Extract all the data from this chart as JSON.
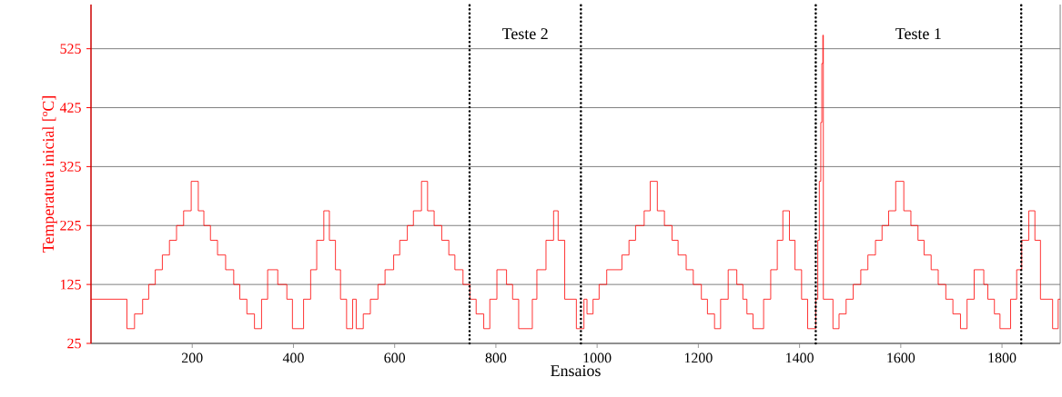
{
  "chart_data": {
    "type": "step",
    "xlabel": "Ensaios",
    "ylabel": "Temperatura inicial [ºC]",
    "xlim": [
      0,
      1915
    ],
    "ylim": [
      25,
      600
    ],
    "xticks": [
      200,
      400,
      600,
      800,
      1000,
      1200,
      1400,
      1600,
      1800
    ],
    "yticks": [
      25,
      125,
      225,
      325,
      425,
      525
    ],
    "grid": "y",
    "series": [
      {
        "color": "#ff0000",
        "x": [
          0,
          71,
          86,
          102,
          114,
          127,
          141,
          155,
          169,
          183,
          198,
          212,
          223,
          236,
          250,
          266,
          282,
          294,
          308,
          323,
          337,
          349,
          369,
          387,
          398,
          420,
          434,
          446,
          460,
          471,
          483,
          493,
          505,
          517,
          524,
          538,
          552,
          567,
          581,
          598,
          610,
          625,
          637,
          653,
          665,
          678,
          693,
          707,
          719,
          735,
          749,
          761,
          776,
          788,
          802,
          821,
          833,
          845,
          872,
          881,
          899,
          914,
          923,
          936,
          959,
          974,
          980,
          992,
          1004,
          1019,
          1049,
          1063,
          1076,
          1093,
          1105,
          1119,
          1133,
          1148,
          1160,
          1176,
          1190,
          1206,
          1218,
          1232,
          1244,
          1259,
          1276,
          1288,
          1296,
          1308,
          1329,
          1343,
          1356,
          1367,
          1380,
          1391,
          1404,
          1416,
          1432,
          1436,
          1439,
          1442,
          1444,
          1446,
          1447,
          1466,
          1478,
          1492,
          1506,
          1521,
          1535,
          1550,
          1563,
          1576,
          1590,
          1606,
          1620,
          1634,
          1646,
          1660,
          1674,
          1689,
          1703,
          1718,
          1731,
          1745,
          1764,
          1772,
          1785,
          1796,
          1817,
          1829,
          1839,
          1853,
          1865,
          1876,
          1900,
          1911,
          1915
        ],
        "values": [
          100,
          50,
          75,
          100,
          125,
          150,
          175,
          200,
          225,
          250,
          300,
          250,
          225,
          200,
          175,
          150,
          125,
          100,
          75,
          50,
          100,
          150,
          125,
          100,
          50,
          100,
          150,
          200,
          250,
          200,
          150,
          100,
          50,
          100,
          50,
          75,
          100,
          125,
          150,
          175,
          200,
          225,
          250,
          300,
          250,
          225,
          200,
          175,
          150,
          125,
          100,
          75,
          50,
          100,
          150,
          125,
          100,
          50,
          100,
          150,
          200,
          250,
          200,
          100,
          50,
          100,
          75,
          100,
          125,
          150,
          175,
          200,
          225,
          250,
          300,
          250,
          225,
          200,
          175,
          150,
          125,
          100,
          75,
          50,
          100,
          150,
          125,
          100,
          75,
          50,
          100,
          150,
          200,
          250,
          200,
          150,
          100,
          50,
          100,
          200,
          300,
          400,
          500,
          548,
          100,
          50,
          75,
          100,
          125,
          150,
          175,
          200,
          225,
          250,
          300,
          250,
          225,
          200,
          175,
          150,
          125,
          100,
          75,
          50,
          100,
          150,
          125,
          100,
          75,
          50,
          100,
          150,
          200,
          250,
          200,
          100,
          50,
          100,
          100
        ]
      }
    ],
    "ref_lines": [
      {
        "axis": "x",
        "value": 748,
        "color": "#000000",
        "line_style": "dotted"
      },
      {
        "axis": "x",
        "value": 968,
        "color": "#000000",
        "line_style": "dotted"
      },
      {
        "axis": "x",
        "value": 1432,
        "color": "#000000",
        "line_style": "dotted"
      },
      {
        "axis": "x",
        "value": 1838,
        "color": "#000000",
        "line_style": "dotted"
      }
    ],
    "annotations": [
      "Teste 2",
      "Teste 1"
    ]
  }
}
